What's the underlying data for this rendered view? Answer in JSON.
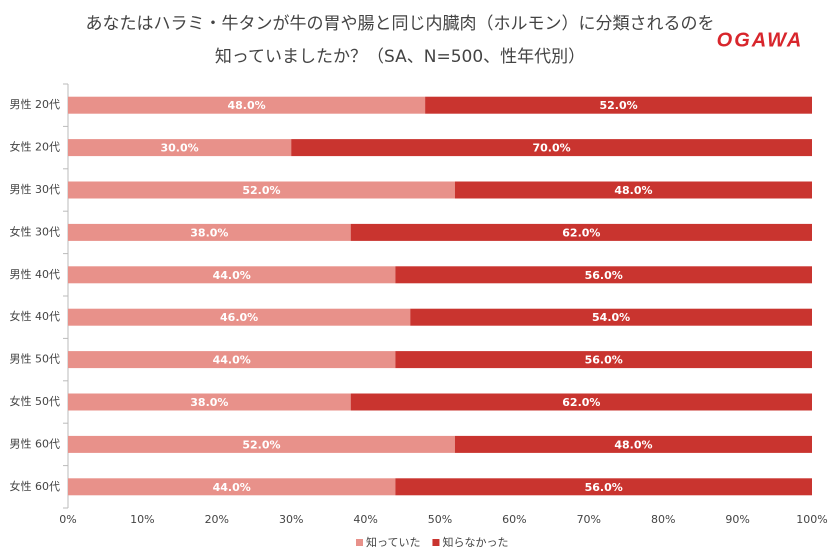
{
  "logo": "OGAWA",
  "chart_data": {
    "type": "stacked-barh",
    "title": [
      "あなたはハラミ・牛タンが牛の胃や腸と同じ内臓肉（ホルモン）に分類されるのを",
      "知っていましたか？（SA、N=500、性年代別）"
    ],
    "categories": [
      "男性 20代",
      "女性 20代",
      "男性 30代",
      "女性 30代",
      "男性 40代",
      "女性 40代",
      "男性 50代",
      "女性 50代",
      "男性 60代",
      "女性 60代"
    ],
    "series": [
      {
        "name": "知っていた",
        "color": "#e8918a",
        "values": [
          48,
          30,
          52,
          38,
          44,
          46,
          44,
          38,
          52,
          44
        ],
        "value_labels": [
          "48.0%",
          "30.0%",
          "52.0%",
          "38.0%",
          "44.0%",
          "46.0%",
          "44.0%",
          "38.0%",
          "52.0%",
          "44.0%"
        ]
      },
      {
        "name": "知らなかった",
        "color": "#c9342f",
        "values": [
          52,
          70,
          48,
          62,
          56,
          54,
          56,
          62,
          48,
          56
        ],
        "value_labels": [
          "52.0%",
          "70.0%",
          "48.0%",
          "62.0%",
          "56.0%",
          "54.0%",
          "56.0%",
          "62.0%",
          "48.0%",
          "56.0%"
        ]
      }
    ],
    "xlim": [
      0,
      100
    ],
    "xticks": [
      {
        "value": 0,
        "label": "0%"
      },
      {
        "value": 10,
        "label": "10%"
      },
      {
        "value": 20,
        "label": "20%"
      },
      {
        "value": 30,
        "label": "30%"
      },
      {
        "value": 40,
        "label": "40%"
      },
      {
        "value": 50,
        "label": "50%"
      },
      {
        "value": 60,
        "label": "60%"
      },
      {
        "value": 70,
        "label": "70%"
      },
      {
        "value": 80,
        "label": "80%"
      },
      {
        "value": 90,
        "label": "90%"
      },
      {
        "value": 100,
        "label": "100%"
      }
    ],
    "legend": "bottom"
  }
}
